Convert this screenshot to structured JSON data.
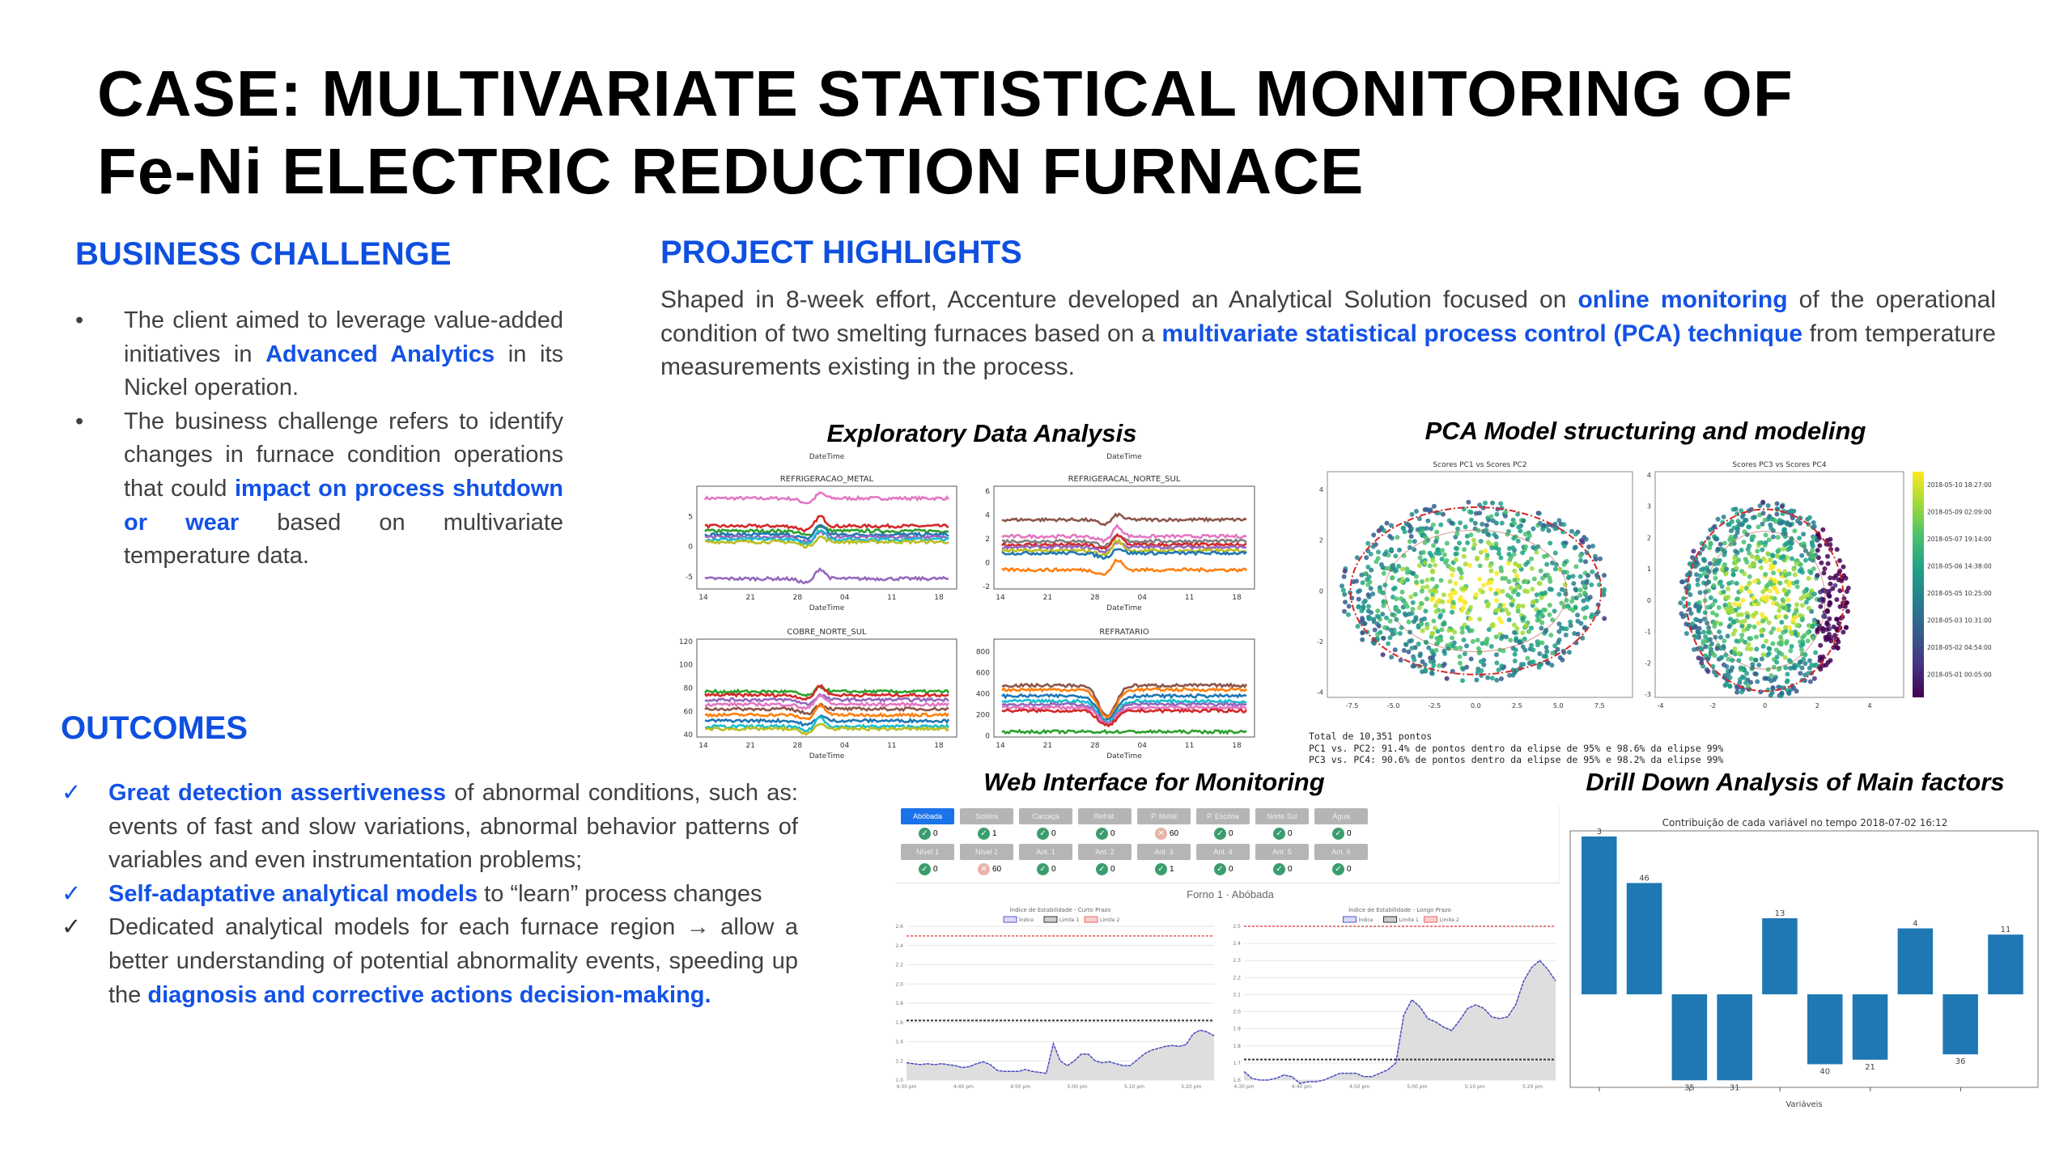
{
  "title": {
    "line1": "CASE: MULTIVARIATE STATISTICAL MONITORING OF",
    "line2": "Fe-Ni ELECTRIC REDUCTION FURNACE"
  },
  "business_challenge": {
    "heading": "BUSINESS CHALLENGE",
    "bullet_icon": "•",
    "items": [
      [
        {
          "t": "The client aimed to leverage value-added initiatives in "
        },
        {
          "t": "Advanced Analytics",
          "hl": true
        },
        {
          "t": " in its Nickel operation."
        }
      ],
      [
        {
          "t": "The business challenge refers to identify changes in furnace condition operations that could "
        },
        {
          "t": "impact on process shutdown or wear",
          "hl": true
        },
        {
          "t": " based on multivariate  temperature data."
        }
      ]
    ]
  },
  "project_highlights": {
    "heading": "PROJECT HIGHLIGHTS",
    "paragraph": [
      {
        "t": "Shaped in 8-week effort, Accenture developed an Analytical Solution focused on "
      },
      {
        "t": "online monitoring",
        "hl": true
      },
      {
        "t": " of the operational condition of two smelting furnaces based on a "
      },
      {
        "t": "multivariate statistical process control (PCA) technique",
        "hl": true
      },
      {
        "t": " from temperature measurements existing in the process."
      }
    ]
  },
  "outcomes": {
    "heading": "OUTCOMES",
    "check_icon": "✓",
    "arrow_icon": "→",
    "items": [
      [
        {
          "t": "Great detection assertiveness",
          "hl": true
        },
        {
          "t": " of abnormal conditions, such as: events of fast and slow variations, abnormal behavior patterns of variables and even instrumentation problems;"
        }
      ],
      [
        {
          "t": "Self-adaptative analytical models",
          "hl": true
        },
        {
          "t": " to “learn” process changes"
        }
      ],
      [
        {
          "t": "Dedicated analytical models for each furnace region → allow a better understanding of potential abnormality events, speeding up the "
        },
        {
          "t": "diagnosis and corrective actions decision-making.",
          "hl": true
        }
      ]
    ]
  },
  "captions": {
    "eda": "Exploratory Data Analysis",
    "pca": "PCA Model structuring and modeling",
    "web": "Web Interface for Monitoring",
    "drill": "Drill Down Analysis of Main factors"
  },
  "chart_data": [
    {
      "type": "line",
      "title": "REFRIGERACAO_METAL",
      "top_label": "DateTime",
      "xlabel": "DateTime",
      "xticks": [
        "14",
        "21",
        "28",
        "04",
        "11",
        "18"
      ],
      "yticks": [
        -5,
        0,
        5
      ],
      "ylim": [
        -7,
        10
      ],
      "series_levels": [
        8,
        3.4,
        2.6,
        2.0,
        1.6,
        1.2,
        0.8,
        -5.3
      ],
      "colors": [
        "#e377c2",
        "#d62728",
        "#2ca02c",
        "#1f77b4",
        "#9467bd",
        "#17becf",
        "#bcbd22",
        "#9467bd"
      ]
    },
    {
      "type": "line",
      "title": "REFRIGERACAL_NORTE_SUL",
      "top_label": "DateTime",
      "xlabel": "DateTime",
      "xticks": [
        "14",
        "21",
        "28",
        "04",
        "11",
        "18"
      ],
      "yticks": [
        -2,
        0,
        2,
        4,
        6
      ],
      "ylim": [
        -2.2,
        6.4
      ],
      "series_levels": [
        3.6,
        2.2,
        1.8,
        1.5,
        1.3,
        1.0,
        0.8,
        -0.6
      ],
      "colors": [
        "#8c564b",
        "#e377c2",
        "#7f7f7f",
        "#d62728",
        "#9467bd",
        "#bcbd22",
        "#1f77b4",
        "#ff7f0e"
      ]
    },
    {
      "type": "line",
      "title": "COBRE_NORTE_SUL",
      "top_label": "",
      "xlabel": "DateTime",
      "xticks": [
        "14",
        "21",
        "28",
        "04",
        "11",
        "18"
      ],
      "yticks": [
        40,
        60,
        80,
        100,
        120
      ],
      "ylim": [
        38,
        122
      ],
      "series_levels": [
        77,
        74,
        70,
        66,
        62,
        57,
        52,
        47,
        45
      ],
      "colors": [
        "#2ca02c",
        "#d62728",
        "#9467bd",
        "#e377c2",
        "#8c564b",
        "#ff7f0e",
        "#1f77b4",
        "#17becf",
        "#bcbd22"
      ]
    },
    {
      "type": "line",
      "title": "REFRATARIO",
      "top_label": "",
      "xlabel": "DateTime",
      "xticks": [
        "14",
        "21",
        "28",
        "04",
        "11",
        "18"
      ],
      "yticks": [
        0,
        200,
        400,
        600,
        800
      ],
      "ylim": [
        -10,
        920
      ],
      "series_levels": [
        480,
        440,
        380,
        330,
        300,
        270,
        240,
        40
      ],
      "colors": [
        "#8c564b",
        "#ff7f0e",
        "#1f77b4",
        "#17becf",
        "#9467bd",
        "#e377c2",
        "#d62728",
        "#2ca02c"
      ]
    },
    {
      "type": "scatter",
      "title": "Scores PC1 vs Scores PC2",
      "xticks": [
        "-7.5",
        "-5.0",
        "-2.5",
        "0.0",
        "2.5",
        "5.0",
        "7.5"
      ],
      "xlim": [
        -9,
        9.5
      ],
      "yticks": [
        "-4",
        "-2",
        "0",
        "2",
        "4"
      ],
      "ylim": [
        -4.2,
        4.7
      ],
      "ellipse_99": [
        7.6,
        3.3
      ],
      "ellipse_95": [
        5.5,
        2.4
      ]
    },
    {
      "type": "scatter",
      "title": "Scores PC3 vs Scores PC4",
      "xticks": [
        "-4",
        "-2",
        "0",
        "2",
        "4"
      ],
      "xlim": [
        -4.2,
        5.3
      ],
      "yticks": [
        "-3",
        "-2",
        "-1",
        "0",
        "1",
        "2",
        "3",
        "4"
      ],
      "ylim": [
        -3.1,
        4.1
      ],
      "ellipse_99": [
        3,
        2.9
      ],
      "ellipse_95": [
        2.3,
        2.2
      ]
    },
    {
      "type": "colorbar",
      "labels": [
        "2018-05-10 18:27:00",
        "2018-05-09 02:09:00",
        "2018-05-07 19:14:00",
        "2018-05-06 14:38:00",
        "2018-05-05 10:25:00",
        "2018-05-03 10:31:00",
        "2018-05-02 04:54:00",
        "2018-05-01 00:05:00"
      ]
    },
    {
      "type": "bar",
      "title": "Contribuição de cada variável no tempo 2018-07-02 16:12",
      "xlabel": "Variáveis",
      "labels": [
        "3",
        "46",
        "35",
        "31",
        "13",
        "40",
        "21",
        "4",
        "36",
        "11"
      ],
      "values": [
        5.6,
        3.95,
        -3.05,
        -3.05,
        2.7,
        -2.48,
        -2.32,
        2.34,
        -2.13,
        2.12
      ],
      "ylim": [
        -3.3,
        5.8
      ],
      "color": "#1f77b4"
    },
    {
      "type": "line",
      "title": "Índice de Estabilidade - Curto Prazo",
      "legend": [
        "Índice",
        "Limite 1",
        "Limite 2"
      ],
      "xticks": [
        "4:30 pm",
        "4:40 pm",
        "4:50 pm",
        "5:00 pm",
        "5:10 pm",
        "5:20 pm"
      ],
      "yticks": [
        "1.0",
        "1.2",
        "1.4",
        "1.6",
        "1.8",
        "2.0",
        "2.2",
        "2.4",
        "2.6"
      ],
      "ylim": [
        1.0,
        2.6
      ],
      "limit1": 1.62,
      "limit2": 2.5,
      "values": [
        1.18,
        1.17,
        1.16,
        1.17,
        1.16,
        1.17,
        1.16,
        1.15,
        1.13,
        1.14,
        1.17,
        1.19,
        1.16,
        1.1,
        1.09,
        1.09,
        1.09,
        1.11,
        1.09,
        1.08,
        1.07,
        1.38,
        1.2,
        1.15,
        1.2,
        1.27,
        1.27,
        1.2,
        1.18,
        1.19,
        1.17,
        1.15,
        1.15,
        1.21,
        1.27,
        1.31,
        1.33,
        1.35,
        1.36,
        1.35,
        1.37,
        1.48,
        1.52,
        1.5,
        1.46
      ]
    },
    {
      "type": "line",
      "title": "Índice de Estabilidade - Longo Prazo",
      "legend": [
        "Índice",
        "Limite 1",
        "Limite 2"
      ],
      "xticks": [
        "4:30 pm",
        "4:40 pm",
        "4:50 pm",
        "5:00 pm",
        "5:10 pm",
        "5:20 pm"
      ],
      "yticks": [
        "1.6",
        "1.7",
        "1.8",
        "1.9",
        "2.0",
        "2.1",
        "2.2",
        "2.3",
        "2.4",
        "2.5"
      ],
      "ylim": [
        1.6,
        2.5
      ],
      "limit1": 1.72,
      "limit2": 2.5,
      "values": [
        1.65,
        1.61,
        1.6,
        1.6,
        1.61,
        1.63,
        1.62,
        1.58,
        1.59,
        1.59,
        1.6,
        1.62,
        1.64,
        1.64,
        1.64,
        1.62,
        1.62,
        1.64,
        1.66,
        1.7,
        1.98,
        2.07,
        2.03,
        1.96,
        1.94,
        1.91,
        1.89,
        1.95,
        2.02,
        2.04,
        2.02,
        1.97,
        1.96,
        1.97,
        2.04,
        2.18,
        2.26,
        2.3,
        2.25,
        2.18
      ]
    }
  ],
  "web_interface": {
    "tabs_row1": [
      {
        "label": "Abóbada",
        "status": "ok",
        "value": "0"
      },
      {
        "label": "Soleira",
        "status": "ok",
        "value": "1"
      },
      {
        "label": "Carcaça",
        "status": "ok",
        "value": "0"
      },
      {
        "label": "Refrat.",
        "status": "ok",
        "value": "0"
      },
      {
        "label": "P. Metal",
        "status": "alarm",
        "value": "60"
      },
      {
        "label": "P. Escória",
        "status": "ok",
        "value": "0"
      },
      {
        "label": "Norte Sul",
        "status": "ok",
        "value": "0"
      },
      {
        "label": "Água",
        "status": "ok",
        "value": "0"
      }
    ],
    "tabs_row2": [
      {
        "label": "Nível 1",
        "status": "ok",
        "value": "0"
      },
      {
        "label": "Nível 2",
        "status": "alarm",
        "value": "60"
      },
      {
        "label": "Ant. 1",
        "status": "ok",
        "value": "0"
      },
      {
        "label": "Ant. 2",
        "status": "ok",
        "value": "0"
      },
      {
        "label": "Ant. 3",
        "status": "ok",
        "value": "1"
      },
      {
        "label": "Ant. 4",
        "status": "ok",
        "value": "0"
      },
      {
        "label": "Ant. 5",
        "status": "ok",
        "value": "0"
      },
      {
        "label": "Ant. 6",
        "status": "ok",
        "value": "0"
      }
    ],
    "subtitle": "Forno 1 · Abóbada"
  },
  "pca_text": [
    "Total de 10,351 pontos",
    "PC1 vs. PC2: 91.4% de pontos dentro da elipse de 95% e 98.6% da elipse 99%",
    "PC3 vs. PC4: 90.6% de pontos dentro da elipse de 95% e 98.2% da elipse 99%"
  ]
}
